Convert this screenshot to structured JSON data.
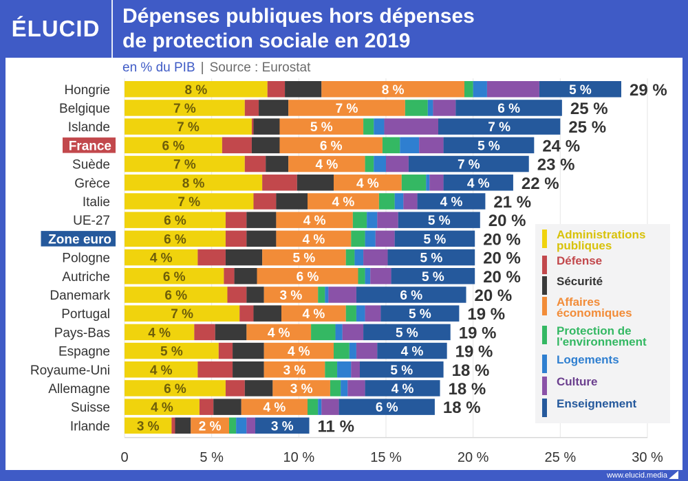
{
  "brand": "ÉLUCID",
  "header": {
    "title_line1": "Dépenses publiques hors dépenses",
    "title_line2": "de protection sociale en 2019",
    "unit": "en % du PIB",
    "separator": "|",
    "source": "Source : Eurostat"
  },
  "footer": {
    "url": "www.elucid.media"
  },
  "legend": [
    {
      "name": "Administrations publiques",
      "color": "#f0d30d",
      "text_color": "#d8c20a"
    },
    {
      "name": "Défense",
      "color": "#c2484c",
      "text_color": "#c2484c"
    },
    {
      "name": "Sécurité",
      "color": "#3a3a3a",
      "text_color": "#333333"
    },
    {
      "name": "Affaires économiques",
      "color": "#f28c38",
      "text_color": "#f28c38"
    },
    {
      "name": "Protection de l'environnement",
      "color": "#34b863",
      "text_color": "#34b863"
    },
    {
      "name": "Logements",
      "color": "#2f7fd0",
      "text_color": "#2f7fd0"
    },
    {
      "name": "Culture",
      "color": "#8a52a8",
      "text_color": "#6b3f8e"
    },
    {
      "name": "Enseignement",
      "color": "#25599c",
      "text_color": "#25599c"
    }
  ],
  "highlight": {
    "France": "#c2484c",
    "Zone euro": "#25599c"
  },
  "chart_data": {
    "type": "bar",
    "orientation": "horizontal",
    "stacked": true,
    "title": "Dépenses publiques hors dépenses de protection sociale en 2019",
    "subtitle": "en % du PIB | Source : Eurostat",
    "xlabel": "",
    "ylabel": "",
    "xlim": [
      0,
      30
    ],
    "x_ticks": [
      0,
      5,
      10,
      15,
      20,
      25,
      30
    ],
    "x_tick_labels": [
      "0",
      "5 %",
      "10 %",
      "15 %",
      "20 %",
      "25 %",
      "30 %"
    ],
    "grid": true,
    "legend_position": "bottom-right",
    "categories": [
      "Hongrie",
      "Belgique",
      "Islande",
      "France",
      "Suède",
      "Grèce",
      "Italie",
      "UE-27",
      "Zone euro",
      "Pologne",
      "Autriche",
      "Danemark",
      "Portugal",
      "Pays-Bas",
      "Espagne",
      "Royaume-Uni",
      "Allemagne",
      "Suisse",
      "Irlande"
    ],
    "totals_labels": [
      "29 %",
      "25 %",
      "25 %",
      "24 %",
      "23 %",
      "22 %",
      "21 %",
      "20 %",
      "20 %",
      "20 %",
      "20 %",
      "20 %",
      "19 %",
      "19 %",
      "19 %",
      "18 %",
      "18 %",
      "18 %",
      "11 %"
    ],
    "series": [
      {
        "name": "Administrations publiques",
        "values": [
          8.2,
          6.9,
          7.3,
          5.6,
          6.9,
          7.9,
          7.4,
          5.8,
          5.8,
          4.2,
          5.7,
          5.9,
          6.6,
          4.0,
          5.4,
          4.2,
          5.8,
          4.3,
          2.7
        ],
        "labels": [
          "8 %",
          "7 %",
          "7 %",
          "6 %",
          "7 %",
          "8 %",
          "7 %",
          "6 %",
          "6 %",
          "4 %",
          "6 %",
          "6 %",
          "7 %",
          "4 %",
          "5 %",
          "4 %",
          "6 %",
          "4 %",
          "3 %"
        ]
      },
      {
        "name": "Défense",
        "values": [
          1.0,
          0.8,
          0.1,
          1.7,
          1.2,
          2.0,
          1.3,
          1.2,
          1.2,
          1.6,
          0.6,
          1.1,
          0.8,
          1.2,
          0.8,
          2.0,
          1.1,
          0.8,
          0.2
        ]
      },
      {
        "name": "Sécurité",
        "values": [
          2.1,
          1.7,
          1.5,
          1.6,
          1.3,
          2.1,
          1.8,
          1.7,
          1.7,
          2.1,
          1.3,
          1.0,
          1.6,
          1.8,
          1.8,
          1.8,
          1.6,
          1.6,
          0.9
        ]
      },
      {
        "name": "Affaires économiques",
        "values": [
          8.2,
          6.7,
          4.8,
          5.9,
          4.4,
          3.9,
          4.1,
          4.4,
          4.3,
          4.8,
          5.8,
          3.1,
          3.7,
          3.7,
          4.0,
          3.5,
          3.3,
          3.8,
          2.2
        ],
        "labels": [
          "8 %",
          "7 %",
          "5 %",
          "6 %",
          "4 %",
          "4 %",
          "4 %",
          "4 %",
          "4 %",
          "5 %",
          "6 %",
          "3 %",
          "4 %",
          "4 %",
          "4 %",
          "3 %",
          "3 %",
          "4 %",
          "2 %"
        ]
      },
      {
        "name": "Protection de l'environnement",
        "values": [
          0.5,
          1.3,
          0.6,
          1.0,
          0.5,
          1.4,
          0.9,
          0.8,
          0.8,
          0.5,
          0.4,
          0.4,
          0.6,
          1.4,
          0.9,
          0.7,
          0.6,
          0.6,
          0.4
        ]
      },
      {
        "name": "Logements",
        "values": [
          0.8,
          0.3,
          0.6,
          1.1,
          0.7,
          0.2,
          0.5,
          0.6,
          0.6,
          0.5,
          0.3,
          0.2,
          0.5,
          0.4,
          0.4,
          0.8,
          0.4,
          0.2,
          0.6
        ]
      },
      {
        "name": "Culture",
        "values": [
          3.0,
          1.3,
          3.1,
          1.4,
          1.3,
          0.8,
          0.8,
          1.2,
          1.1,
          1.4,
          1.2,
          1.6,
          0.9,
          1.2,
          1.2,
          0.5,
          1.0,
          1.0,
          0.5
        ]
      },
      {
        "name": "Enseignement",
        "values": [
          4.7,
          6.1,
          7.0,
          5.2,
          6.9,
          4.0,
          3.9,
          4.7,
          4.6,
          5.0,
          4.8,
          6.3,
          4.5,
          5.0,
          4.0,
          4.8,
          4.3,
          5.5,
          3.1
        ],
        "labels": [
          "5 %",
          "6 %",
          "7 %",
          "5 %",
          "7 %",
          "4 %",
          "4 %",
          "5 %",
          "5 %",
          "5 %",
          "5 %",
          "6 %",
          "5 %",
          "5 %",
          "4 %",
          "5 %",
          "4 %",
          "6 %",
          "3 %"
        ]
      }
    ]
  }
}
